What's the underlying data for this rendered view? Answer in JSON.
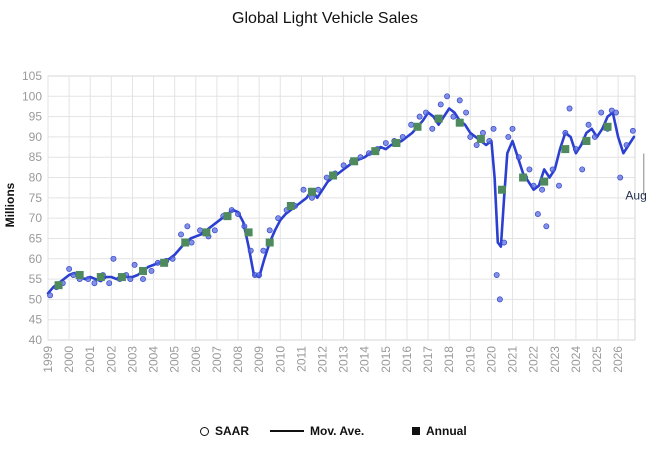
{
  "chart_data": {
    "type": "line",
    "title": "Global Light Vehicle Sales",
    "ylabel": "Millions",
    "xlabel": "",
    "ylim": [
      40,
      105
    ],
    "yticks": [
      "40",
      "45",
      "50",
      "55",
      "60",
      "65",
      "70",
      "75",
      "80",
      "85",
      "90",
      "95",
      "100",
      "105"
    ],
    "xlim": [
      1999,
      2026.8
    ],
    "xticks": [
      "1999",
      "2000",
      "2001",
      "2002",
      "2003",
      "2004",
      "2005",
      "2006",
      "2007",
      "2008",
      "2009",
      "2010",
      "2011",
      "2012",
      "2013",
      "2014",
      "2015",
      "2016",
      "2017",
      "2018",
      "2019",
      "2020",
      "2021",
      "2022",
      "2023",
      "2024",
      "2025",
      "2026"
    ],
    "grid": true,
    "annotations": [
      {
        "text": "Aug",
        "x": 2026.6,
        "y": 80.5
      }
    ],
    "legend": {
      "position": "bottom",
      "items": [
        "SAAR",
        "Mov. Ave.",
        "Annual"
      ]
    },
    "colors": {
      "line": "#2b3fd1",
      "points": "#5a6ee0",
      "annual": "#4e8a5e"
    },
    "series": [
      {
        "name": "Mov. Ave.",
        "style": "line",
        "x": [
          1999.0,
          1999.25,
          1999.5,
          1999.75,
          2000.0,
          2000.25,
          2000.5,
          2000.75,
          2001.0,
          2001.25,
          2001.5,
          2001.75,
          2002.0,
          2002.25,
          2002.5,
          2002.75,
          2003.0,
          2003.25,
          2003.5,
          2003.75,
          2004.0,
          2004.25,
          2004.5,
          2004.75,
          2005.0,
          2005.25,
          2005.5,
          2005.75,
          2006.0,
          2006.25,
          2006.5,
          2006.75,
          2007.0,
          2007.25,
          2007.5,
          2007.75,
          2008.0,
          2008.25,
          2008.5,
          2008.75,
          2009.0,
          2009.25,
          2009.5,
          2009.75,
          2010.0,
          2010.25,
          2010.5,
          2010.75,
          2011.0,
          2011.25,
          2011.5,
          2011.75,
          2012.0,
          2012.25,
          2012.5,
          2012.75,
          2013.0,
          2013.25,
          2013.5,
          2013.75,
          2014.0,
          2014.25,
          2014.5,
          2014.75,
          2015.0,
          2015.25,
          2015.5,
          2015.75,
          2016.0,
          2016.25,
          2016.5,
          2016.75,
          2017.0,
          2017.25,
          2017.5,
          2017.75,
          2018.0,
          2018.25,
          2018.5,
          2018.75,
          2019.0,
          2019.25,
          2019.5,
          2019.75,
          2020.0,
          2020.15,
          2020.3,
          2020.45,
          2020.6,
          2020.75,
          2021.0,
          2021.25,
          2021.5,
          2021.75,
          2022.0,
          2022.25,
          2022.5,
          2022.75,
          2023.0,
          2023.25,
          2023.5,
          2023.75,
          2024.0,
          2024.25,
          2024.5,
          2024.75,
          2025.0,
          2025.25,
          2025.5,
          2025.75,
          2026.0,
          2026.25,
          2026.5,
          2026.75
        ],
        "y": [
          51.5,
          53,
          54,
          55,
          56,
          56.5,
          55.5,
          55,
          55.5,
          55,
          54.5,
          55.5,
          55.5,
          55,
          56,
          55.5,
          55.5,
          56,
          57,
          58,
          58.5,
          59,
          59.5,
          60,
          61,
          62.5,
          64,
          65,
          65.5,
          66,
          67,
          68,
          69,
          70,
          71,
          72,
          71.5,
          69,
          63,
          56,
          55.5,
          60,
          64,
          67,
          69.5,
          71,
          72,
          73,
          74,
          75,
          77,
          75,
          77,
          79,
          80,
          81,
          82,
          83,
          84,
          84.5,
          85,
          86,
          87,
          87.5,
          87,
          88,
          88.5,
          89,
          90,
          91,
          92.5,
          94,
          96,
          95,
          93,
          95,
          97,
          96,
          94,
          93,
          91,
          90,
          89,
          88,
          89,
          80,
          64,
          63,
          75,
          86,
          89,
          85,
          81,
          79,
          77,
          78,
          82,
          80,
          82,
          87,
          91,
          90,
          86,
          88,
          91,
          92,
          90,
          92,
          95,
          96,
          90,
          86,
          88,
          90
        ]
      },
      {
        "name": "SAAR",
        "style": "points",
        "x": [
          1999.1,
          1999.4,
          1999.7,
          2000.0,
          2000.2,
          2000.5,
          2000.9,
          2001.2,
          2001.6,
          2001.9,
          2002.1,
          2002.4,
          2002.7,
          2002.9,
          2003.1,
          2003.5,
          2003.9,
          2004.2,
          2004.6,
          2004.9,
          2005.3,
          2005.6,
          2005.8,
          2006.2,
          2006.6,
          2006.9,
          2007.3,
          2007.7,
          2008.0,
          2008.3,
          2008.6,
          2008.8,
          2009.0,
          2009.2,
          2009.5,
          2009.9,
          2010.3,
          2010.7,
          2011.1,
          2011.5,
          2011.8,
          2012.2,
          2012.6,
          2013.0,
          2013.4,
          2013.8,
          2014.2,
          2014.6,
          2015.0,
          2015.4,
          2015.8,
          2016.2,
          2016.6,
          2016.9,
          2017.2,
          2017.6,
          2017.9,
          2018.2,
          2018.5,
          2018.8,
          2019.0,
          2019.3,
          2019.6,
          2019.9,
          2020.1,
          2020.25,
          2020.4,
          2020.6,
          2020.8,
          2021.0,
          2021.3,
          2021.6,
          2021.8,
          2022.0,
          2022.2,
          2022.4,
          2022.6,
          2022.9,
          2023.2,
          2023.5,
          2023.7,
          2024.0,
          2024.3,
          2024.6,
          2024.9,
          2025.2,
          2025.5,
          2025.7,
          2025.9,
          2026.1,
          2026.4,
          2026.7
        ],
        "y": [
          51,
          53,
          54,
          57.5,
          56,
          55,
          55,
          54,
          56,
          54,
          60,
          55,
          56,
          55,
          58.5,
          55,
          57,
          59,
          59.5,
          60,
          66,
          68,
          64,
          67,
          65.5,
          67,
          70.5,
          72,
          71,
          68,
          62,
          56,
          56,
          62,
          67,
          70,
          72,
          73,
          77,
          75,
          77,
          80,
          81,
          83,
          84,
          85,
          86,
          87,
          88.5,
          89,
          90,
          93,
          95,
          96,
          92,
          98,
          100,
          95,
          99,
          96,
          90,
          88,
          91,
          89,
          92,
          56,
          50,
          64,
          90,
          92,
          85,
          80,
          82,
          78,
          71,
          77,
          68,
          82,
          78,
          91,
          97,
          87,
          82,
          93,
          90,
          96,
          92,
          96.5,
          96,
          80,
          88,
          91.5
        ]
      },
      {
        "name": "Annual",
        "style": "squares",
        "x": [
          1999.5,
          2000.5,
          2001.5,
          2002.5,
          2003.5,
          2004.5,
          2005.5,
          2006.5,
          2007.5,
          2008.5,
          2009.5,
          2010.5,
          2011.5,
          2012.5,
          2013.5,
          2014.5,
          2015.5,
          2016.5,
          2017.5,
          2018.5,
          2019.5,
          2020.5,
          2021.5,
          2022.5,
          2023.5,
          2024.5,
          2025.5
        ],
        "y": [
          53.5,
          56,
          55.5,
          55.5,
          57,
          59,
          64,
          66.5,
          70.5,
          66.5,
          64,
          73,
          76.5,
          80.5,
          84,
          86.5,
          88.5,
          92.5,
          94.5,
          93.5,
          89.5,
          77,
          80,
          79,
          87,
          89,
          92.5
        ]
      }
    ]
  }
}
